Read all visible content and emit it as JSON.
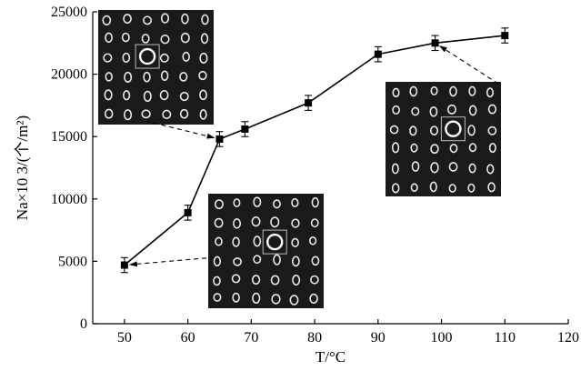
{
  "chart_data": {
    "type": "line",
    "xlabel": "T/°C",
    "ylabel": "Na×10 3/(个/m²)",
    "xlim": [
      45,
      120
    ],
    "ylim": [
      0,
      25000
    ],
    "x_ticks": [
      "50",
      "60",
      "70",
      "80",
      "90",
      "100",
      "110",
      "120"
    ],
    "y_ticks": [
      "0",
      "5000",
      "10000",
      "15000",
      "20000",
      "25000"
    ],
    "series": [
      {
        "x": [
          50,
          60,
          65,
          69,
          79,
          90,
          99,
          110
        ],
        "y": [
          4700,
          8900,
          14800,
          15600,
          17700,
          21600,
          22500,
          23100
        ],
        "err": [
          600,
          600,
          600,
          600,
          600,
          600,
          600,
          600
        ]
      }
    ],
    "marker": "square",
    "grid": false,
    "insets": [
      {
        "name": "micrograph-low-temp",
        "points_to_x": 50,
        "points_to_y": 4700
      },
      {
        "name": "micrograph-mid-temp",
        "points_to_x": 65,
        "points_to_y": 14800
      },
      {
        "name": "micrograph-high-temp",
        "points_to_x": 99,
        "points_to_y": 22500
      }
    ]
  }
}
